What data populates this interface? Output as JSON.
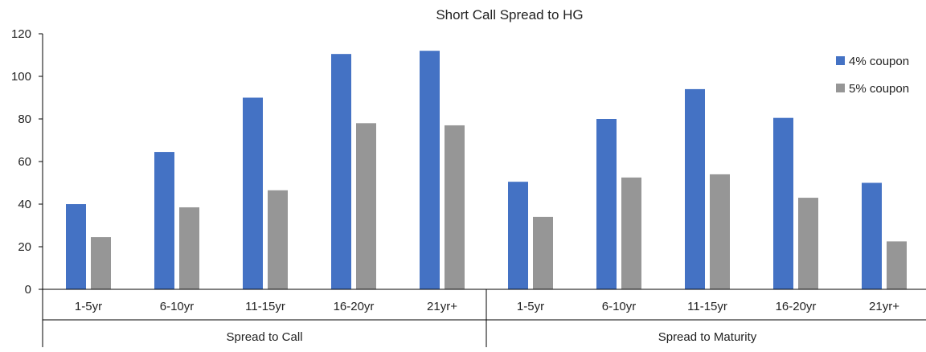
{
  "chart_data": {
    "type": "bar",
    "title": "Short Call Spread to HG",
    "xlabel": "",
    "ylabel": "",
    "ylim": [
      0,
      120
    ],
    "yticks": [
      0,
      20,
      40,
      60,
      80,
      100,
      120
    ],
    "grid": false,
    "legend_position": "top-right",
    "groups": [
      {
        "label": "Spread to Call",
        "categories": [
          "1-5yr",
          "6-10yr",
          "11-15yr",
          "16-20yr",
          "21yr+"
        ]
      },
      {
        "label": "Spread to Maturity",
        "categories": [
          "1-5yr",
          "6-10yr",
          "11-15yr",
          "16-20yr",
          "21yr+"
        ]
      }
    ],
    "categories": [
      "1-5yr",
      "6-10yr",
      "11-15yr",
      "16-20yr",
      "21yr+",
      "1-5yr",
      "6-10yr",
      "11-15yr",
      "16-20yr",
      "21yr+"
    ],
    "series": [
      {
        "name": "4% coupon",
        "color": "#4472C4",
        "values": [
          40,
          64.5,
          90,
          110.5,
          112,
          50.5,
          80,
          94,
          80.5,
          50
        ]
      },
      {
        "name": "5% coupon",
        "color": "#969696",
        "values": [
          24.5,
          38.5,
          46.5,
          78,
          77,
          34,
          52.5,
          54,
          43,
          22.5
        ]
      }
    ]
  }
}
